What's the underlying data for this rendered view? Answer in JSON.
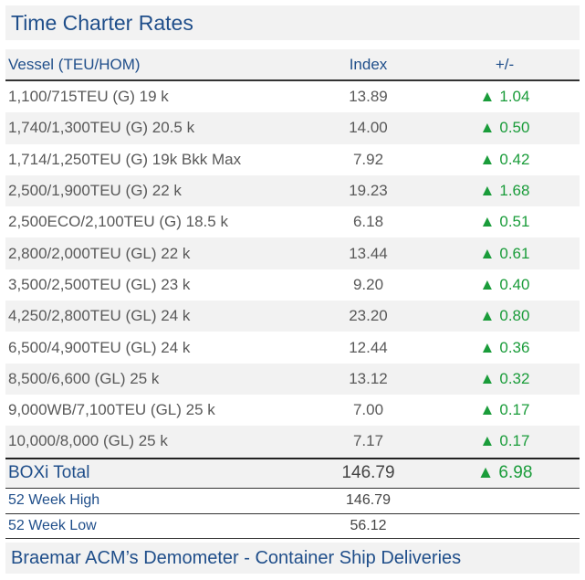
{
  "title": "Time Charter Rates",
  "header": {
    "vessel": "Vessel (TEU/HOM)",
    "index": "Index",
    "change": "+/-"
  },
  "arrow_glyph": "▲",
  "colors": {
    "accent_blue": "#1f4e8a",
    "up_green": "#1a9c3a",
    "stripe": "#f2f2f2"
  },
  "rows": [
    {
      "vessel": "1,100/715TEU (G) 19 k",
      "index": "13.89",
      "change": "1.04"
    },
    {
      "vessel": "1,740/1,300TEU (G) 20.5 k",
      "index": "14.00",
      "change": "0.50"
    },
    {
      "vessel": "1,714/1,250TEU (G) 19k Bkk Max",
      "index": "7.92",
      "change": "0.42"
    },
    {
      "vessel": "2,500/1,900TEU (G) 22 k",
      "index": "19.23",
      "change": "1.68"
    },
    {
      "vessel": "2,500ECO/2,100TEU (G) 18.5 k",
      "index": "6.18",
      "change": "0.51"
    },
    {
      "vessel": "2,800/2,000TEU (GL) 22 k",
      "index": "13.44",
      "change": "0.61"
    },
    {
      "vessel": "3,500/2,500TEU (GL) 23 k",
      "index": "9.20",
      "change": "0.40"
    },
    {
      "vessel": "4,250/2,800TEU (GL) 24 k",
      "index": "23.20",
      "change": "0.80"
    },
    {
      "vessel": "6,500/4,900TEU (GL) 24 k",
      "index": "12.44",
      "change": "0.36"
    },
    {
      "vessel": "8,500/6,600 (GL) 25 k",
      "index": "13.12",
      "change": "0.32"
    },
    {
      "vessel": "9,000WB/7,100TEU (GL) 25 k",
      "index": "7.00",
      "change": "0.17"
    },
    {
      "vessel": "10,000/8,000 (GL) 25 k",
      "index": "7.17",
      "change": "0.17"
    }
  ],
  "total": {
    "label": "BOXi Total",
    "index": "146.79",
    "change": "6.98"
  },
  "high": {
    "label": "52 Week High",
    "index": "146.79"
  },
  "low": {
    "label": "52 Week Low",
    "index": "56.12"
  },
  "footer": "Braemar ACM’s Demometer - Container Ship Deliveries"
}
